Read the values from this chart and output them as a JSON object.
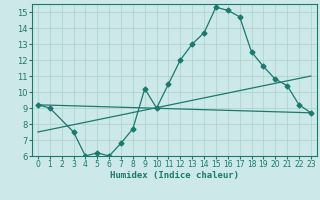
{
  "xlabel": "Humidex (Indice chaleur)",
  "ylabel": "",
  "background_color": "#cce8e8",
  "line_color": "#1a7a6e",
  "grid_color": "#afd4d0",
  "xlim": [
    -0.5,
    23.5
  ],
  "ylim": [
    6,
    15.5
  ],
  "xticks": [
    0,
    1,
    2,
    3,
    4,
    5,
    6,
    7,
    8,
    9,
    10,
    11,
    12,
    13,
    14,
    15,
    16,
    17,
    18,
    19,
    20,
    21,
    22,
    23
  ],
  "yticks": [
    6,
    7,
    8,
    9,
    10,
    11,
    12,
    13,
    14,
    15
  ],
  "line1_x": [
    0,
    1,
    3,
    4,
    5,
    6,
    7,
    8,
    9,
    10,
    11,
    12,
    13,
    14,
    15,
    16,
    17,
    18,
    19,
    20,
    21,
    22,
    23
  ],
  "line1_y": [
    9.2,
    9.0,
    7.5,
    6.0,
    6.2,
    6.0,
    6.8,
    7.7,
    10.2,
    9.0,
    10.5,
    12.0,
    13.0,
    13.7,
    15.3,
    15.1,
    14.7,
    12.5,
    11.6,
    10.8,
    10.4,
    9.2,
    8.7
  ],
  "line2_x": [
    0,
    23
  ],
  "line2_y": [
    9.2,
    8.7
  ],
  "line3_x": [
    0,
    23
  ],
  "line3_y": [
    7.5,
    11.0
  ]
}
